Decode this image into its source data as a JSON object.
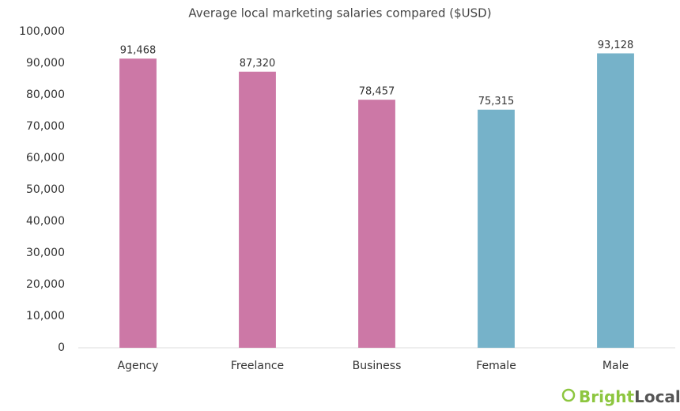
{
  "chart_data": {
    "type": "bar",
    "title": "Average local marketing salaries compared ($USD)",
    "categories": [
      "Agency",
      "Freelance",
      "Business",
      "Female",
      "Male"
    ],
    "values": [
      91468,
      87320,
      78457,
      75315,
      93128
    ],
    "value_labels": [
      "91,468",
      "87,320",
      "78,457",
      "75,315",
      "93,128"
    ],
    "colors": [
      "#cc78a6",
      "#cc78a6",
      "#cc78a6",
      "#76b2c9",
      "#76b2c9"
    ],
    "ylim": [
      0,
      100000
    ],
    "yticks": [
      0,
      {
        "value": 10000,
        "label": "10,000"
      },
      {
        "value": 20000,
        "label": "20,000"
      },
      {
        "value": 30000,
        "label": "30,000"
      },
      {
        "value": 40000,
        "label": "40,000"
      },
      {
        "value": 50000,
        "label": "50,000"
      },
      {
        "value": 60000,
        "label": "60,000"
      },
      {
        "value": 70000,
        "label": "70,000"
      },
      {
        "value": 80000,
        "label": "80,000"
      },
      {
        "value": 90000,
        "label": "90,000"
      },
      {
        "value": 100000,
        "label": "100,000"
      }
    ],
    "grid": false,
    "brand": [
      "Bright",
      "Local"
    ]
  }
}
